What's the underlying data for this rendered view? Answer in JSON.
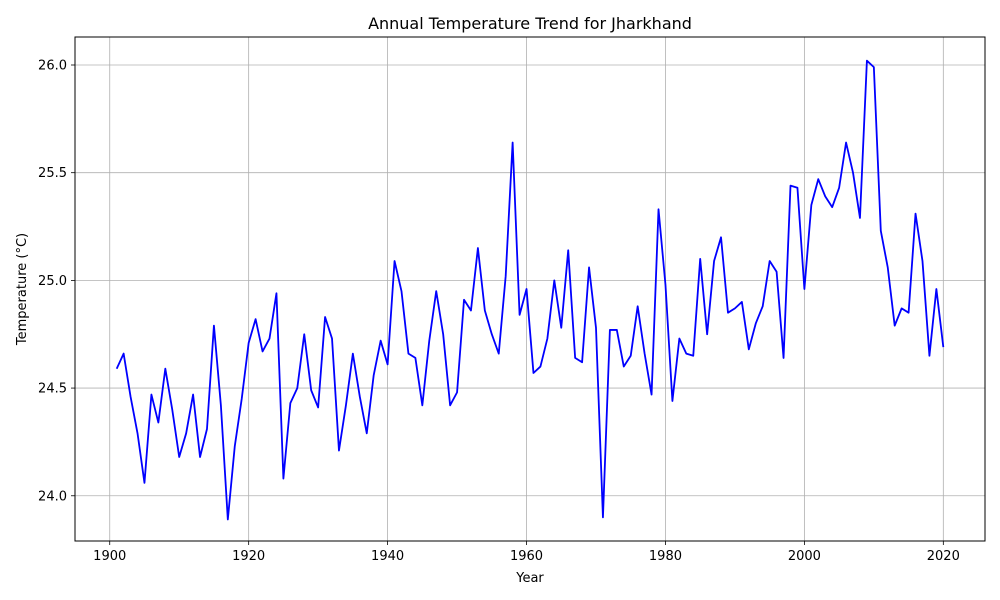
{
  "chart_data": {
    "type": "line",
    "title": "Annual Temperature Trend for Jharkhand",
    "xlabel": "Year",
    "ylabel": "Temperature (°C)",
    "xlim": [
      1895,
      2026
    ],
    "ylim": [
      23.79,
      26.13
    ],
    "xticks": [
      1900,
      1920,
      1940,
      1960,
      1980,
      2000,
      2020
    ],
    "yticks": [
      24.0,
      24.5,
      25.0,
      25.5,
      26.0
    ],
    "grid": true,
    "line_color": "#0000ff",
    "series": [
      {
        "x": [
          1901,
          1902,
          1903,
          1904,
          1905,
          1906,
          1907,
          1908,
          1909,
          1910,
          1911,
          1912,
          1913,
          1914,
          1915,
          1916,
          1917,
          1918,
          1919,
          1920,
          1921,
          1922,
          1923,
          1924,
          1925,
          1926,
          1927,
          1928,
          1929,
          1930,
          1931,
          1932,
          1933,
          1934,
          1935,
          1936,
          1937,
          1938,
          1939,
          1940,
          1941,
          1942,
          1943,
          1944,
          1945,
          1946,
          1947,
          1948,
          1949,
          1950,
          1951,
          1952,
          1953,
          1954,
          1955,
          1956,
          1957,
          1958,
          1959,
          1960,
          1961,
          1962,
          1963,
          1964,
          1965,
          1966,
          1967,
          1968,
          1969,
          1970,
          1971,
          1972,
          1973,
          1974,
          1975,
          1976,
          1977,
          1978,
          1979,
          1980,
          1981,
          1982,
          1983,
          1984,
          1985,
          1986,
          1987,
          1988,
          1989,
          1990,
          1991,
          1992,
          1993,
          1994,
          1995,
          1996,
          1997,
          1998,
          1999,
          2000,
          2001,
          2002,
          2003,
          2004,
          2005,
          2006,
          2007,
          2008,
          2009,
          2010,
          2011,
          2012,
          2013,
          2014,
          2015,
          2016,
          2017,
          2018,
          2019,
          2020
        ],
        "values": [
          24.59,
          24.66,
          24.46,
          24.29,
          24.06,
          24.47,
          24.34,
          24.59,
          24.4,
          24.18,
          24.29,
          24.47,
          24.18,
          24.31,
          24.79,
          24.42,
          23.89,
          24.23,
          24.45,
          24.71,
          24.82,
          24.67,
          24.73,
          24.94,
          24.08,
          24.43,
          24.5,
          24.75,
          24.49,
          24.41,
          24.83,
          24.73,
          24.21,
          24.42,
          24.66,
          24.46,
          24.29,
          24.56,
          24.72,
          24.61,
          25.09,
          24.95,
          24.66,
          24.64,
          24.42,
          24.72,
          24.95,
          24.75,
          24.42,
          24.48,
          24.91,
          24.86,
          25.15,
          24.86,
          24.75,
          24.66,
          25.02,
          25.64,
          24.84,
          24.96,
          24.57,
          24.6,
          24.73,
          25.0,
          24.78,
          25.14,
          24.64,
          24.62,
          25.06,
          24.78,
          23.9,
          24.77,
          24.77,
          24.6,
          24.65,
          24.88,
          24.66,
          24.47,
          25.33,
          24.98,
          24.44,
          24.73,
          24.66,
          24.65,
          25.1,
          24.75,
          25.09,
          25.2,
          24.85,
          24.87,
          24.9,
          24.68,
          24.8,
          24.88,
          25.09,
          25.04,
          24.64,
          25.44,
          25.43,
          24.96,
          25.35,
          25.47,
          25.39,
          25.34,
          25.43,
          25.64,
          25.5,
          25.29,
          26.02,
          25.99,
          25.23,
          25.06,
          24.79,
          24.87,
          24.85,
          25.31,
          25.09,
          24.65,
          24.96,
          24.69
        ]
      }
    ]
  }
}
